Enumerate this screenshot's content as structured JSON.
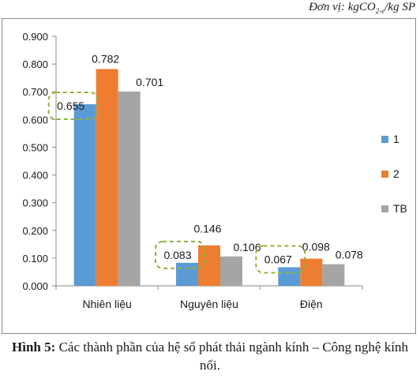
{
  "unit_note": {
    "prefix": "Đơn vị: kgCO",
    "sub": "2-e",
    "suffix": "/kg SP"
  },
  "caption": {
    "label": "Hình 5:",
    "text": " Các thành phần của hệ số phát thải ngành kính – Công nghệ kính nổi."
  },
  "chart_data": {
    "type": "bar",
    "categories": [
      "Nhiên liệu",
      "Nguyên liệu",
      "Điện"
    ],
    "series": [
      {
        "name": "1",
        "values": [
          0.655,
          0.083,
          0.067
        ],
        "color": "#5B9BD5"
      },
      {
        "name": "2",
        "values": [
          0.782,
          0.146,
          0.098
        ],
        "color": "#ED7D31"
      },
      {
        "name": "TB",
        "values": [
          0.701,
          0.106,
          0.078
        ],
        "color": "#A5A5A5"
      }
    ],
    "data_labels": [
      [
        "0.655",
        "0.782",
        "0.701"
      ],
      [
        "0.083",
        "0.146",
        "0.106"
      ],
      [
        "0.067",
        "0.098",
        "0.078"
      ]
    ],
    "ylim": [
      0,
      0.9
    ],
    "yticks": [
      "0.000",
      "0.100",
      "0.200",
      "0.300",
      "0.400",
      "0.500",
      "0.600",
      "0.700",
      "0.800",
      "0.900"
    ],
    "grid": false,
    "legend_position": "right",
    "highlight_color": "#8DB33A",
    "highlighted_values": [
      "0.655",
      "0.083",
      "0.067"
    ]
  }
}
